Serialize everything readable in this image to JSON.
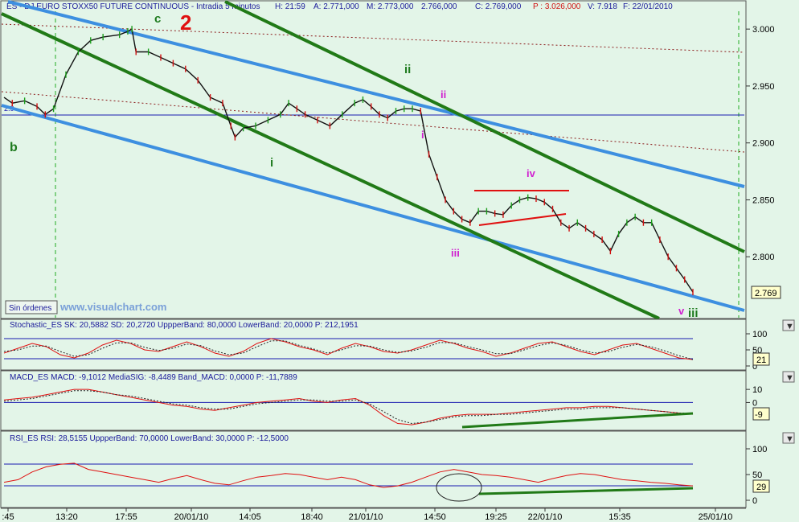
{
  "main": {
    "header": {
      "instrument": "ES - DJ EURO STOXX50 FUTURE CONTINUOUS - Intradia 5 minutos",
      "high": "H: 21:59",
      "a": "A: 2.771,000",
      "m": "M: 2.773,000",
      "low": "2.766,000",
      "close": "C: 2.769,000",
      "p": "P : 3.026,000",
      "v": "V: 7.918",
      "date": "F: 22/01/2010"
    },
    "left_label": "2.9",
    "button": "Sin órdenes",
    "watermark": "www.visualchart.com",
    "last_value": "2.769",
    "wave_labels": {
      "c": "c",
      "two": "2",
      "b": "b",
      "i_green": "i",
      "ii_green": "ii",
      "ii_pink": "ii",
      "i_pink": "i",
      "iii_pink": "iii",
      "iv_pink": "iv",
      "v_pink": "v",
      "iii_green": "iii"
    }
  },
  "stochastic": {
    "header": "Stochastic_ES  SK: 20,5882  SD: 20,2720  UppperBand: 80,0000  LowerBand: 20,0000  P: 212,1951",
    "last": "21"
  },
  "macd": {
    "header": "MACD_ES  MACD: -9,1012  MediaSIG: -8,4489  Band_MACD: 0,0000  P: -11,7889",
    "last": "-9"
  },
  "rsi": {
    "header": "RSI_ES  RSI: 28,5155  UppperBand: 70,0000  LowerBand: 30,0000  P: -12,5000",
    "last": "29"
  },
  "x_ticks": [
    ":45",
    "13:20",
    "17:55",
    "20/01/10",
    "14:05",
    "18:40",
    "21/01/10",
    "14:50",
    "19:25",
    "22/01/10",
    "15:35",
    "25/01/10"
  ],
  "colors": {
    "bg": "#e3f5e8",
    "price": "#000000",
    "up": "#1b9d1b",
    "down": "#d01010",
    "channel_blue": "#3d8fe0",
    "channel_green": "#217a17",
    "indicator": "#e01010",
    "band": "#1a1ab0"
  },
  "chart_data": [
    {
      "type": "line",
      "title": "ES - DJ EURO STOXX50 FUTURE CONTINUOUS - Intradia 5 minutos",
      "ylim": [
        2750,
        3010
      ],
      "y_ticks": [
        "3.000",
        "2.950",
        "2.900",
        "2.850",
        "2.800"
      ],
      "series": [
        {
          "name": "ES",
          "points": [
            [
              0,
              2940
            ],
            [
              2,
              2935
            ],
            [
              5,
              2937
            ],
            [
              8,
              2932
            ],
            [
              10,
              2925
            ],
            [
              12,
              2930
            ],
            [
              15,
              2960
            ],
            [
              18,
              2980
            ],
            [
              21,
              2990
            ],
            [
              24,
              2993
            ],
            [
              28,
              2995
            ],
            [
              30,
              2998
            ],
            [
              31,
              3000
            ],
            [
              32,
              2980
            ],
            [
              35,
              2980
            ],
            [
              38,
              2975
            ],
            [
              41,
              2970
            ],
            [
              44,
              2965
            ],
            [
              47,
              2955
            ],
            [
              50,
              2940
            ],
            [
              53,
              2935
            ],
            [
              55,
              2915
            ],
            [
              56,
              2905
            ],
            [
              58,
              2913
            ],
            [
              61,
              2915
            ],
            [
              64,
              2920
            ],
            [
              67,
              2925
            ],
            [
              69,
              2935
            ],
            [
              71,
              2930
            ],
            [
              73,
              2925
            ],
            [
              76,
              2920
            ],
            [
              79,
              2915
            ],
            [
              82,
              2925
            ],
            [
              85,
              2935
            ],
            [
              87,
              2938
            ],
            [
              89,
              2932
            ],
            [
              91,
              2925
            ],
            [
              93,
              2922
            ],
            [
              95,
              2928
            ],
            [
              97,
              2930
            ],
            [
              99,
              2930
            ],
            [
              101,
              2928
            ],
            [
              103,
              2890
            ],
            [
              105,
              2870
            ],
            [
              107,
              2850
            ],
            [
              109,
              2840
            ],
            [
              111,
              2833
            ],
            [
              113,
              2830
            ],
            [
              115,
              2840
            ],
            [
              117,
              2840
            ],
            [
              119,
              2838
            ],
            [
              121,
              2837
            ],
            [
              123,
              2845
            ],
            [
              125,
              2850
            ],
            [
              127,
              2852
            ],
            [
              129,
              2851
            ],
            [
              131,
              2848
            ],
            [
              133,
              2842
            ],
            [
              135,
              2830
            ],
            [
              137,
              2825
            ],
            [
              139,
              2830
            ],
            [
              141,
              2825
            ],
            [
              143,
              2820
            ],
            [
              145,
              2815
            ],
            [
              147,
              2805
            ],
            [
              149,
              2820
            ],
            [
              151,
              2830
            ],
            [
              153,
              2835
            ],
            [
              155,
              2830
            ],
            [
              157,
              2830
            ],
            [
              159,
              2815
            ],
            [
              161,
              2800
            ],
            [
              163,
              2790
            ],
            [
              165,
              2780
            ],
            [
              167,
              2769
            ]
          ]
        }
      ]
    },
    {
      "type": "line",
      "title": "Stochastic_ES",
      "ylim": [
        0,
        100
      ],
      "y_ticks": [
        "100",
        "50",
        "0"
      ],
      "bands": [
        80,
        20
      ],
      "series": [
        {
          "name": "SK",
          "values": [
            40,
            55,
            70,
            60,
            35,
            25,
            40,
            65,
            80,
            70,
            50,
            45,
            60,
            75,
            60,
            40,
            30,
            45,
            70,
            85,
            75,
            60,
            50,
            35,
            55,
            70,
            60,
            45,
            40,
            50,
            65,
            80,
            70,
            55,
            45,
            30,
            40,
            55,
            70,
            75,
            60,
            45,
            35,
            50,
            65,
            70,
            55,
            40,
            25,
            20
          ]
        },
        {
          "name": "SD",
          "values": [
            45,
            50,
            62,
            62,
            45,
            30,
            35,
            55,
            72,
            72,
            58,
            48,
            55,
            68,
            63,
            47,
            35,
            40,
            60,
            78,
            78,
            64,
            53,
            40,
            50,
            63,
            62,
            50,
            42,
            47,
            58,
            73,
            72,
            60,
            50,
            38,
            38,
            50,
            63,
            72,
            64,
            50,
            40,
            45,
            58,
            67,
            60,
            47,
            32,
            20
          ]
        }
      ]
    },
    {
      "type": "line",
      "title": "MACD_ES",
      "ylim": [
        -20,
        15
      ],
      "y_ticks": [
        "10",
        "0"
      ],
      "bands": [
        0
      ],
      "series": [
        {
          "name": "MACD",
          "values": [
            2,
            3,
            4,
            6,
            8,
            10,
            10,
            8,
            6,
            4,
            2,
            0,
            -2,
            -3,
            -5,
            -6,
            -4,
            -2,
            0,
            1,
            2,
            3,
            1,
            0,
            2,
            3,
            -2,
            -10,
            -16,
            -17,
            -15,
            -12,
            -10,
            -9,
            -9,
            -9,
            -8,
            -7,
            -6,
            -5,
            -4,
            -4,
            -3,
            -3,
            -4,
            -5,
            -6,
            -7,
            -8,
            -9
          ]
        },
        {
          "name": "MediaSIG",
          "values": [
            1,
            2,
            3,
            5,
            7,
            9,
            9,
            8,
            6,
            5,
            3,
            1,
            -1,
            -2,
            -4,
            -5,
            -5,
            -3,
            -1,
            0,
            1,
            2,
            2,
            1,
            1,
            2,
            -1,
            -7,
            -13,
            -16,
            -15,
            -13,
            -11,
            -10,
            -10,
            -9,
            -9,
            -8,
            -7,
            -6,
            -5,
            -5,
            -4,
            -4,
            -4,
            -5,
            -6,
            -7,
            -8,
            -8
          ]
        }
      ]
    },
    {
      "type": "line",
      "title": "RSI_ES",
      "ylim": [
        0,
        100
      ],
      "y_ticks": [
        "100",
        "50",
        "0"
      ],
      "bands": [
        70,
        30
      ],
      "series": [
        {
          "name": "RSI",
          "values": [
            35,
            40,
            55,
            65,
            70,
            72,
            60,
            55,
            50,
            45,
            40,
            35,
            42,
            48,
            40,
            33,
            30,
            38,
            45,
            48,
            52,
            50,
            45,
            40,
            45,
            40,
            30,
            25,
            28,
            35,
            45,
            55,
            60,
            55,
            50,
            48,
            45,
            40,
            35,
            42,
            48,
            52,
            50,
            45,
            40,
            38,
            35,
            33,
            30,
            28
          ]
        }
      ]
    }
  ]
}
